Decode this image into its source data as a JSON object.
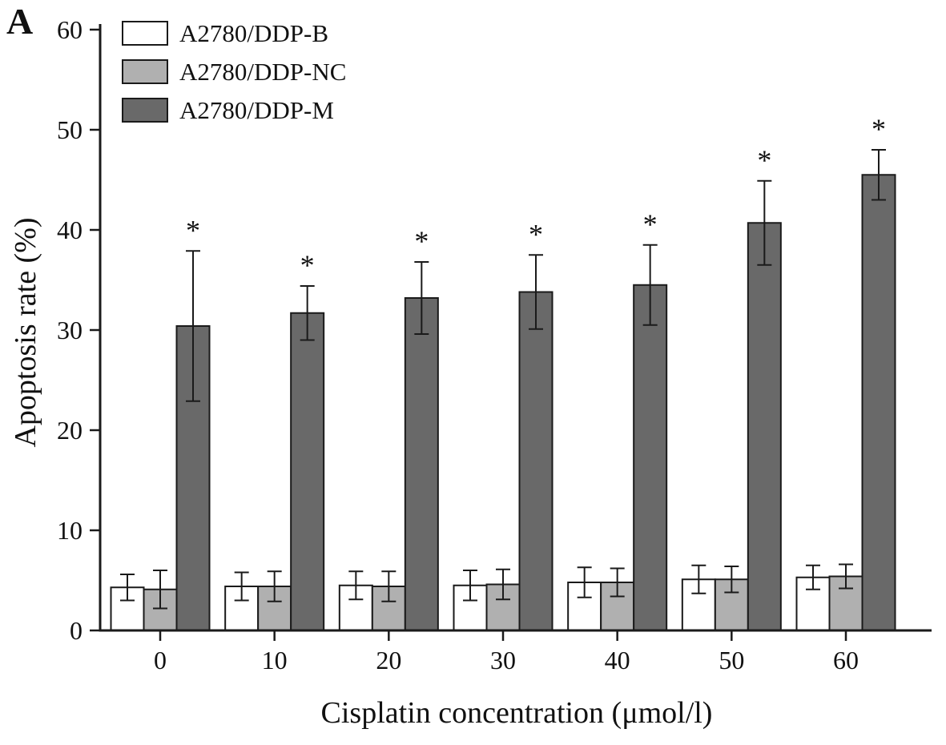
{
  "panel_label": "A",
  "chart_data": {
    "type": "bar",
    "title": "",
    "xlabel": "Cisplatin concentration (μmol/l)",
    "ylabel": "Apoptosis rate (%)",
    "categories": [
      "0",
      "10",
      "20",
      "30",
      "40",
      "50",
      "60"
    ],
    "ylim": [
      0,
      60
    ],
    "yticks": [
      0,
      10,
      20,
      30,
      40,
      50,
      60
    ],
    "grid": false,
    "legend_position": "top-left",
    "axis_color": "#1a1a1a",
    "significance_marker": "*",
    "series": [
      {
        "name": "A2780/DDP-B",
        "color": "#ffffff",
        "values": [
          4.3,
          4.4,
          4.5,
          4.5,
          4.8,
          5.1,
          5.3
        ],
        "errors": [
          1.3,
          1.4,
          1.4,
          1.5,
          1.5,
          1.4,
          1.2
        ],
        "significant": false
      },
      {
        "name": "A2780/DDP-NC",
        "color": "#b0b0b0",
        "values": [
          4.1,
          4.4,
          4.4,
          4.6,
          4.8,
          5.1,
          5.4
        ],
        "errors": [
          1.9,
          1.5,
          1.5,
          1.5,
          1.4,
          1.3,
          1.2
        ],
        "significant": false
      },
      {
        "name": "A2780/DDP-M",
        "color": "#696969",
        "values": [
          30.4,
          31.7,
          33.2,
          33.8,
          34.5,
          40.7,
          45.5
        ],
        "errors": [
          7.5,
          2.7,
          3.6,
          3.7,
          4.0,
          4.2,
          2.5
        ],
        "significant": true
      }
    ]
  }
}
